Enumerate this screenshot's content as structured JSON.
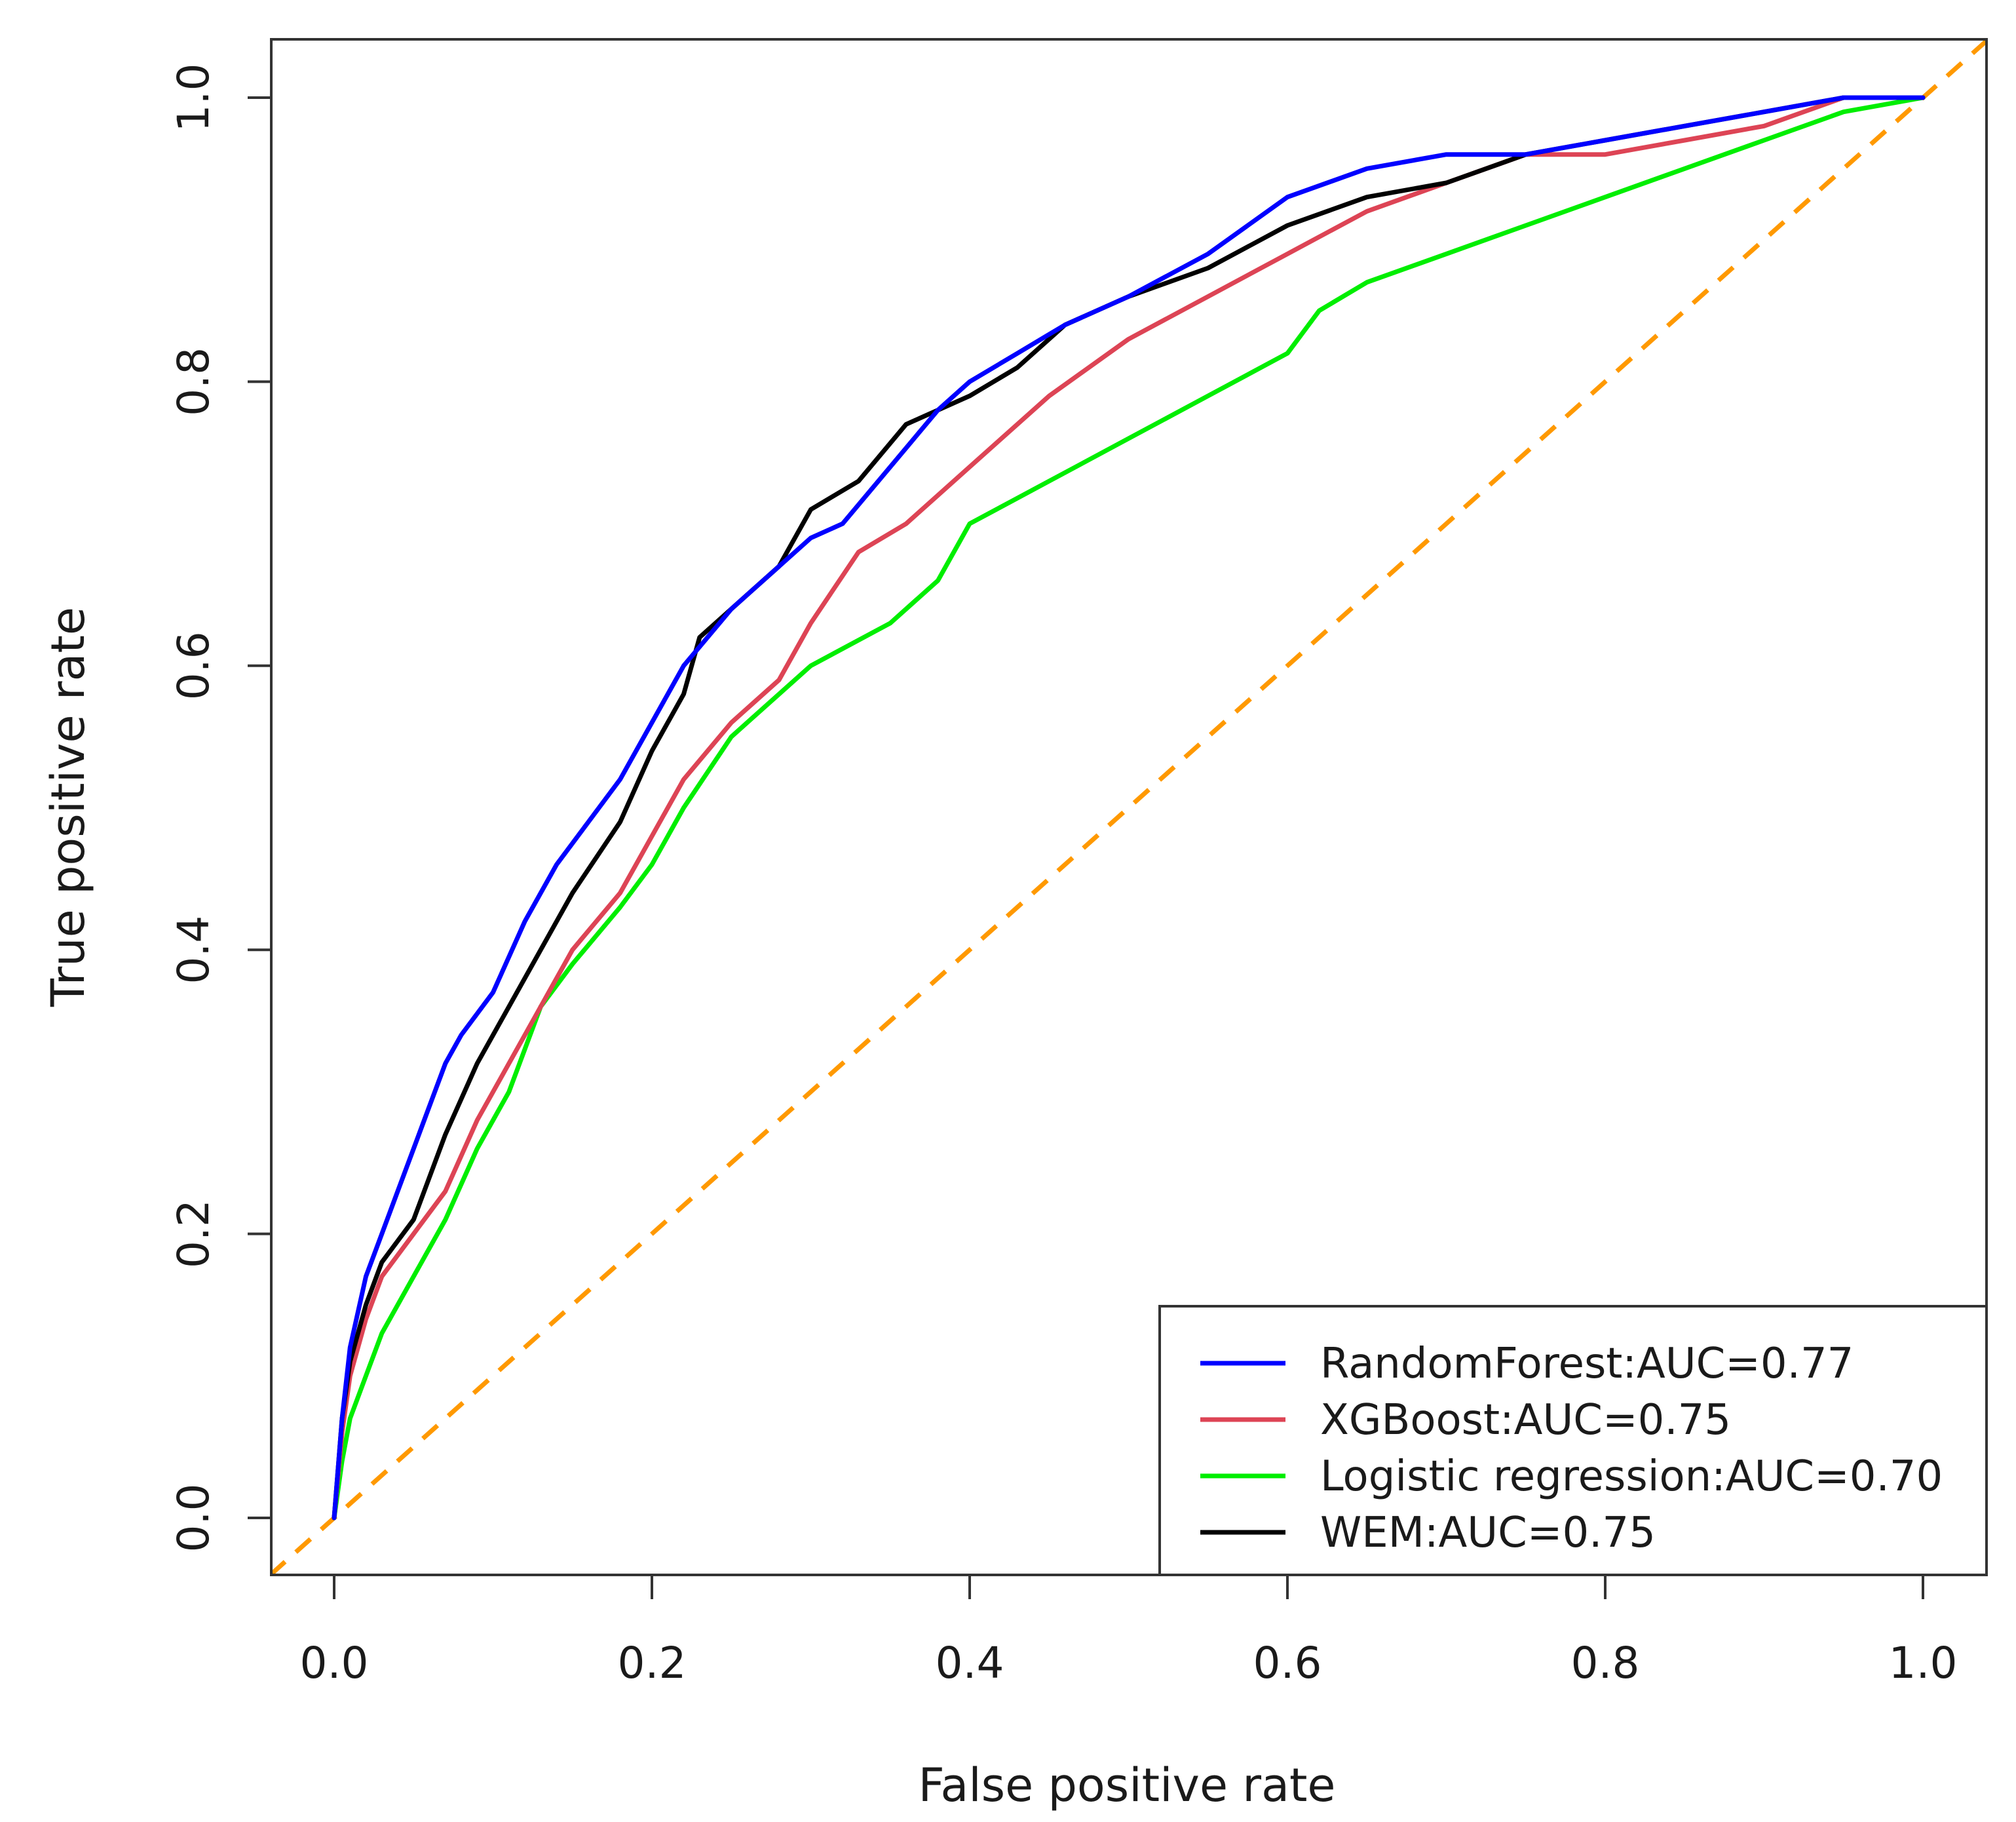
{
  "chart_data": {
    "type": "line",
    "title": "",
    "xlabel": "False positive rate",
    "ylabel": "True positive rate",
    "xlim": [
      0.0,
      1.0
    ],
    "ylim": [
      0.0,
      1.0
    ],
    "x_ticks": [
      "0.0",
      "0.2",
      "0.4",
      "0.6",
      "0.8",
      "1.0"
    ],
    "y_ticks": [
      "0.0",
      "0.2",
      "0.4",
      "0.6",
      "0.8",
      "1.0"
    ],
    "grid": false,
    "legend_position": "bottom-right",
    "reference_line": {
      "name": "chance",
      "color": "#ff9900",
      "style": "dashed",
      "points": [
        [
          0,
          0
        ],
        [
          1,
          1
        ]
      ]
    },
    "series": [
      {
        "name": "RandomForest",
        "label": "RandomForest:AUC=0.77",
        "auc": 0.77,
        "color": "#0000ff",
        "points": [
          [
            0,
            0
          ],
          [
            0.005,
            0.07
          ],
          [
            0.01,
            0.12
          ],
          [
            0.02,
            0.17
          ],
          [
            0.03,
            0.2
          ],
          [
            0.04,
            0.23
          ],
          [
            0.05,
            0.26
          ],
          [
            0.06,
            0.29
          ],
          [
            0.07,
            0.32
          ],
          [
            0.08,
            0.34
          ],
          [
            0.1,
            0.37
          ],
          [
            0.12,
            0.42
          ],
          [
            0.14,
            0.46
          ],
          [
            0.16,
            0.49
          ],
          [
            0.18,
            0.52
          ],
          [
            0.2,
            0.56
          ],
          [
            0.22,
            0.6
          ],
          [
            0.25,
            0.64
          ],
          [
            0.28,
            0.67
          ],
          [
            0.3,
            0.69
          ],
          [
            0.32,
            0.7
          ],
          [
            0.35,
            0.74
          ],
          [
            0.38,
            0.78
          ],
          [
            0.4,
            0.8
          ],
          [
            0.43,
            0.82
          ],
          [
            0.46,
            0.84
          ],
          [
            0.5,
            0.86
          ],
          [
            0.55,
            0.89
          ],
          [
            0.6,
            0.93
          ],
          [
            0.65,
            0.95
          ],
          [
            0.7,
            0.96
          ],
          [
            0.75,
            0.96
          ],
          [
            0.8,
            0.97
          ],
          [
            0.85,
            0.98
          ],
          [
            0.9,
            0.99
          ],
          [
            0.95,
            1.0
          ],
          [
            1.0,
            1.0
          ]
        ]
      },
      {
        "name": "XGBoost",
        "label": "XGBoost:AUC=0.75",
        "auc": 0.75,
        "color": "#dd4455",
        "points": [
          [
            0,
            0
          ],
          [
            0.005,
            0.06
          ],
          [
            0.01,
            0.1
          ],
          [
            0.02,
            0.14
          ],
          [
            0.03,
            0.17
          ],
          [
            0.05,
            0.2
          ],
          [
            0.07,
            0.23
          ],
          [
            0.09,
            0.28
          ],
          [
            0.11,
            0.32
          ],
          [
            0.13,
            0.36
          ],
          [
            0.15,
            0.4
          ],
          [
            0.18,
            0.44
          ],
          [
            0.2,
            0.48
          ],
          [
            0.22,
            0.52
          ],
          [
            0.25,
            0.56
          ],
          [
            0.28,
            0.59
          ],
          [
            0.3,
            0.63
          ],
          [
            0.33,
            0.68
          ],
          [
            0.36,
            0.7
          ],
          [
            0.4,
            0.74
          ],
          [
            0.45,
            0.79
          ],
          [
            0.5,
            0.83
          ],
          [
            0.55,
            0.86
          ],
          [
            0.6,
            0.89
          ],
          [
            0.65,
            0.92
          ],
          [
            0.7,
            0.94
          ],
          [
            0.75,
            0.96
          ],
          [
            0.8,
            0.96
          ],
          [
            0.85,
            0.97
          ],
          [
            0.9,
            0.98
          ],
          [
            0.95,
            1.0
          ],
          [
            1.0,
            1.0
          ]
        ]
      },
      {
        "name": "Logistic regression",
        "label": "Logistic regression:AUC=0.70",
        "auc": 0.7,
        "color": "#00ee00",
        "points": [
          [
            0,
            0
          ],
          [
            0.005,
            0.04
          ],
          [
            0.01,
            0.07
          ],
          [
            0.02,
            0.1
          ],
          [
            0.03,
            0.13
          ],
          [
            0.05,
            0.17
          ],
          [
            0.07,
            0.21
          ],
          [
            0.09,
            0.26
          ],
          [
            0.11,
            0.3
          ],
          [
            0.13,
            0.36
          ],
          [
            0.15,
            0.39
          ],
          [
            0.18,
            0.43
          ],
          [
            0.2,
            0.46
          ],
          [
            0.22,
            0.5
          ],
          [
            0.25,
            0.55
          ],
          [
            0.28,
            0.58
          ],
          [
            0.3,
            0.6
          ],
          [
            0.35,
            0.63
          ],
          [
            0.38,
            0.66
          ],
          [
            0.4,
            0.7
          ],
          [
            0.45,
            0.73
          ],
          [
            0.5,
            0.76
          ],
          [
            0.55,
            0.79
          ],
          [
            0.6,
            0.82
          ],
          [
            0.62,
            0.85
          ],
          [
            0.65,
            0.87
          ],
          [
            0.7,
            0.89
          ],
          [
            0.75,
            0.91
          ],
          [
            0.8,
            0.93
          ],
          [
            0.85,
            0.95
          ],
          [
            0.9,
            0.97
          ],
          [
            0.95,
            0.99
          ],
          [
            1.0,
            1.0
          ]
        ]
      },
      {
        "name": "WEM",
        "label": "WEM:AUC=0.75",
        "auc": 0.75,
        "color": "#000000",
        "points": [
          [
            0,
            0
          ],
          [
            0.005,
            0.07
          ],
          [
            0.01,
            0.11
          ],
          [
            0.02,
            0.15
          ],
          [
            0.03,
            0.18
          ],
          [
            0.05,
            0.21
          ],
          [
            0.07,
            0.27
          ],
          [
            0.09,
            0.32
          ],
          [
            0.11,
            0.36
          ],
          [
            0.13,
            0.4
          ],
          [
            0.15,
            0.44
          ],
          [
            0.18,
            0.49
          ],
          [
            0.2,
            0.54
          ],
          [
            0.22,
            0.58
          ],
          [
            0.23,
            0.62
          ],
          [
            0.25,
            0.64
          ],
          [
            0.28,
            0.67
          ],
          [
            0.3,
            0.71
          ],
          [
            0.33,
            0.73
          ],
          [
            0.36,
            0.77
          ],
          [
            0.4,
            0.79
          ],
          [
            0.43,
            0.81
          ],
          [
            0.46,
            0.84
          ],
          [
            0.5,
            0.86
          ],
          [
            0.55,
            0.88
          ],
          [
            0.6,
            0.91
          ],
          [
            0.65,
            0.93
          ],
          [
            0.7,
            0.94
          ],
          [
            0.75,
            0.96
          ],
          [
            0.8,
            0.97
          ],
          [
            0.85,
            0.98
          ],
          [
            0.9,
            0.99
          ],
          [
            0.95,
            1.0
          ],
          [
            1.0,
            1.0
          ]
        ]
      }
    ]
  }
}
